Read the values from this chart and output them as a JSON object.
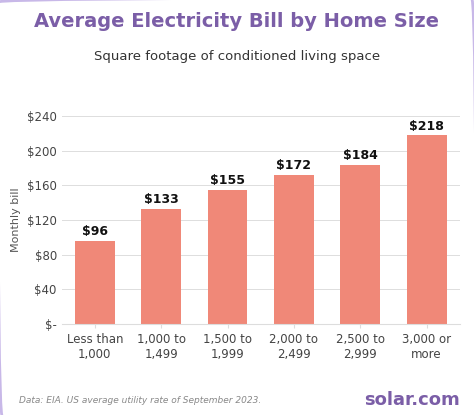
{
  "title": "Average Electricity Bill by Home Size",
  "subtitle": "Square footage of conditioned living space",
  "ylabel": "Monthly bill",
  "categories": [
    "Less than\n1,000",
    "1,000 to\n1,499",
    "1,500 to\n1,999",
    "2,000 to\n2,499",
    "2,500 to\n2,999",
    "3,000 or\nmore"
  ],
  "values": [
    96,
    133,
    155,
    172,
    184,
    218
  ],
  "bar_color": "#F08878",
  "title_color": "#7B5EA7",
  "subtitle_color": "#333333",
  "ylabel_color": "#555555",
  "tick_color": "#444444",
  "label_color": "#111111",
  "background_color": "#FFFFFF",
  "plot_bg_color": "#FFFFFF",
  "border_color": "#C8B8E8",
  "grid_color": "#DDDDDD",
  "ylim": [
    0,
    240
  ],
  "yticks": [
    0,
    40,
    80,
    120,
    160,
    200,
    240
  ],
  "ytick_labels": [
    "$-",
    "$40",
    "$80",
    "$120",
    "$160",
    "$200",
    "$240"
  ],
  "footnote": "Data: EIA. US average utility rate of September 2023.",
  "logo_text": "solar.com",
  "logo_color": "#7B5EA7",
  "title_fontsize": 14,
  "subtitle_fontsize": 9.5,
  "bar_label_fontsize": 9,
  "tick_fontsize": 8.5,
  "ylabel_fontsize": 8
}
